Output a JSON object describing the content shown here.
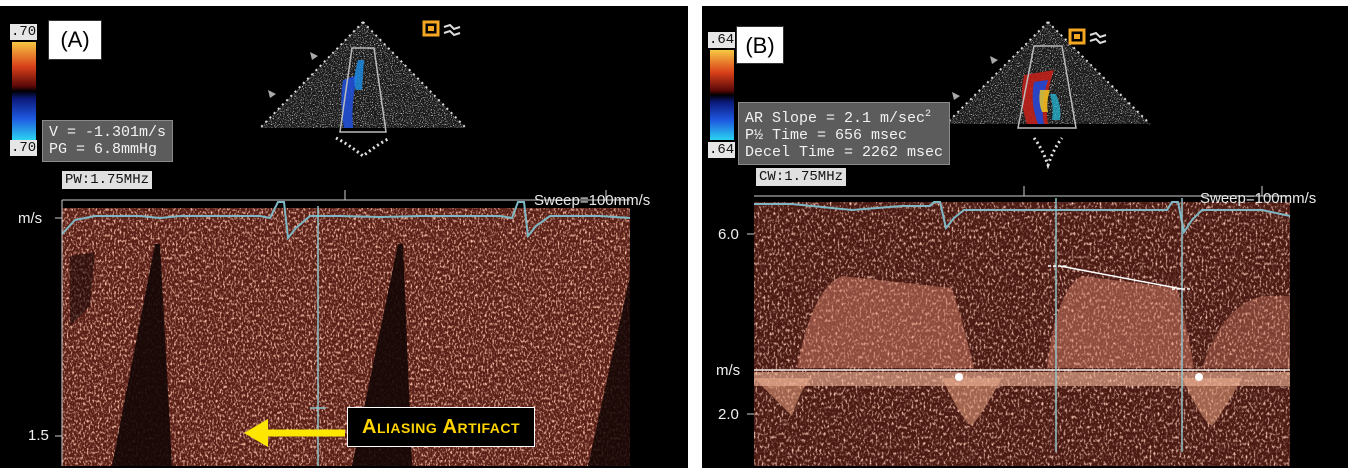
{
  "panel_a": {
    "label": "(A)",
    "scale_top": ".70",
    "scale_bottom": ".70",
    "info_lines": [
      "V = -1.301m/s",
      "PG = 6.8mmHg"
    ],
    "probe": "PW:1.75MHz",
    "sweep": "Sweep=100mm/s",
    "y_unit": "m/s",
    "y_tick": "1.5",
    "annotation": "Aliasing Artifact",
    "colors": {
      "annotation_text": "#ffd400",
      "arrow": "#ffe600"
    }
  },
  "panel_b": {
    "label": "(B)",
    "scale_top": ".64",
    "scale_bottom": ".64",
    "info_lines": [
      "AR Slope = 2.1 m/sec",
      "P½ Time = 656 msec",
      "Decel Time = 2262 msec"
    ],
    "info_superscript": "2",
    "probe": "CW:1.75MHz",
    "sweep": "Sweep=100mm/s",
    "y_tick_top": "6.0",
    "y_unit": "m/s",
    "y_tick_bottom": "2.0"
  },
  "colors": {
    "doppler": "#8a3324",
    "trace": "#7fb8c4",
    "background": "#000000"
  }
}
